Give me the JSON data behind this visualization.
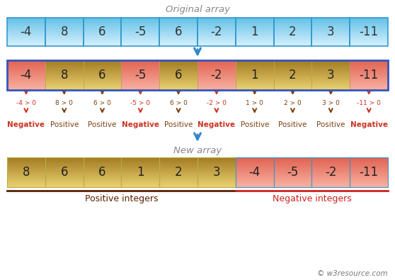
{
  "title_original": "Original array",
  "title_new": "New array",
  "original_array": [
    -4,
    8,
    6,
    -5,
    6,
    -2,
    1,
    2,
    3,
    -11
  ],
  "new_positive": [
    8,
    6,
    6,
    1,
    2,
    3
  ],
  "new_negative": [
    -4,
    -5,
    -2,
    -11
  ],
  "comparisons": [
    "-4 > 0",
    "8 > 0",
    "6 > 0",
    "-5 > 0",
    "6 > 0",
    "-2 > 0",
    "1 > 0",
    "2 > 0",
    "3 > 0",
    "-11 > 0"
  ],
  "labels": [
    "Negative",
    "Positive",
    "Positive",
    "Negative",
    "Positive",
    "Negative",
    "Positive",
    "Positive",
    "Positive",
    "Negative"
  ],
  "is_negative": [
    true,
    false,
    false,
    true,
    false,
    true,
    false,
    false,
    false,
    true
  ],
  "bg_color": "#ffffff",
  "blue_top": "#d4f0fc",
  "blue_bot": "#60c0e8",
  "blue_border": "#3399cc",
  "gold_top": "#e8d070",
  "gold_bot": "#a07820",
  "red_top": "#f8b0a0",
  "red_bot": "#e06050",
  "outer_border": "#3355bb",
  "arrow_blue": "#3388cc",
  "arrow_brown": "#7a4010",
  "arrow_red": "#cc3322",
  "comp_neg_color": "#cc3322",
  "comp_pos_color": "#7a4010",
  "label_neg_color": "#cc3322",
  "label_pos_color": "#7a4010",
  "title_color": "#888888",
  "watermark": "© w3resource.com",
  "positive_label": "Positive integers",
  "negative_label": "Negative integers",
  "underline_pos_color": "#5a2000",
  "underline_neg_color": "#cc2222"
}
